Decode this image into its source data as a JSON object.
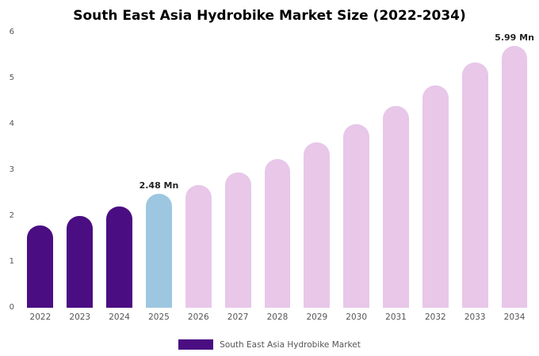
{
  "title": "South East Asia Hydrobike Market Size (2022-2034)",
  "legend": {
    "label": "South East Asia Hydrobike Market",
    "color": "#4b0d82"
  },
  "chart_data": {
    "type": "bar",
    "title": "South East Asia Hydrobike Market Size (2022-2034)",
    "categories": [
      "2022",
      "2023",
      "2024",
      "2025",
      "2026",
      "2027",
      "2028",
      "2029",
      "2030",
      "2031",
      "2032",
      "2033",
      "2034"
    ],
    "values": [
      1.8,
      2.0,
      2.2,
      2.48,
      2.68,
      2.95,
      3.25,
      3.6,
      4.0,
      4.4,
      4.85,
      5.35,
      5.99
    ],
    "bar_colors": [
      "#4b0d82",
      "#4b0d82",
      "#4b0d82",
      "#9dc7e0",
      "#e8c7e9",
      "#e8c7e9",
      "#e8c7e9",
      "#e8c7e9",
      "#e8c7e9",
      "#e8c7e9",
      "#e8c7e9",
      "#e8c7e9",
      "#e8c7e9"
    ],
    "annotations": [
      {
        "index": 3,
        "text": "2.48 Mn"
      },
      {
        "index": 12,
        "text": "5.99 Mn"
      }
    ],
    "xlabel": "",
    "ylabel": "",
    "ylim": [
      0,
      6
    ],
    "yticks": [
      0,
      1,
      2,
      3,
      4,
      5,
      6
    ],
    "grid": false,
    "legend_position": "bottom"
  }
}
